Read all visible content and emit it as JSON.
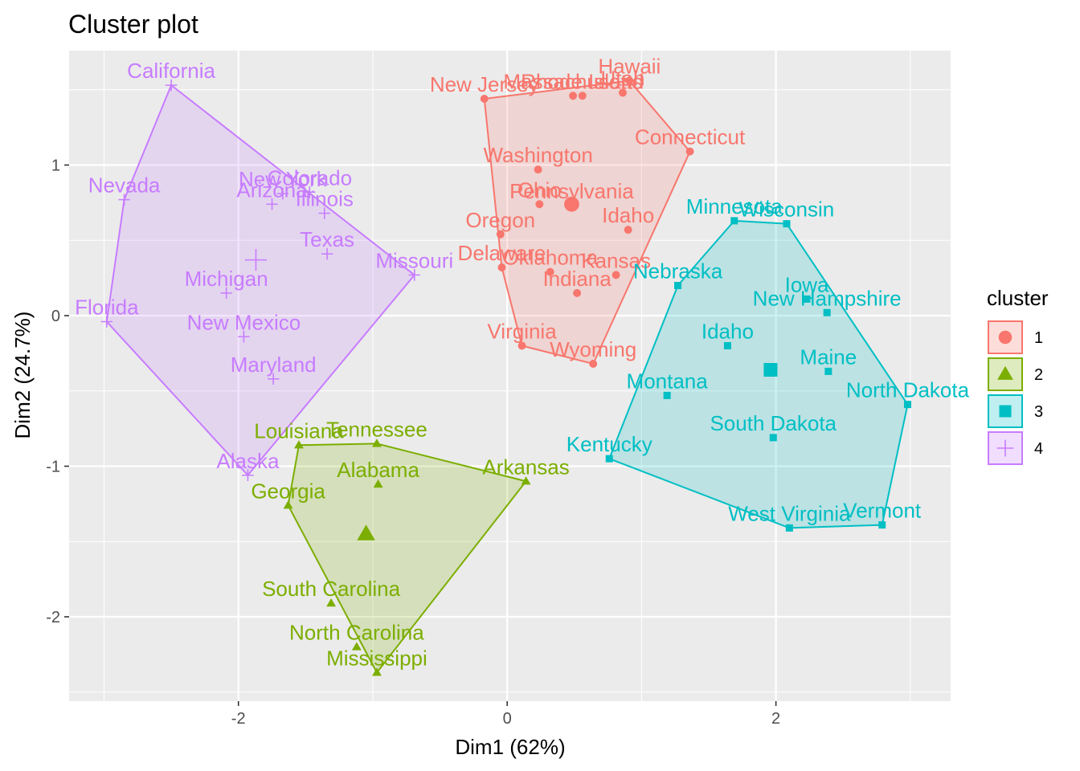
{
  "chart_data": {
    "type": "scatter",
    "title": "Cluster plot",
    "xlabel": "Dim1 (62%)",
    "ylabel": "Dim2 (24.7%)",
    "xlim": [
      -3.26,
      3.3
    ],
    "ylim": [
      -2.56,
      1.76
    ],
    "x_ticks": [
      -2,
      0,
      2
    ],
    "y_ticks": [
      -2,
      -1,
      0,
      1
    ],
    "grid": true,
    "legend": {
      "title": "cluster",
      "position": "right",
      "entries": [
        "1",
        "2",
        "3",
        "4"
      ]
    },
    "colors": {
      "1": "#F8766D",
      "2": "#7CAE00",
      "3": "#00BFC4",
      "4": "#C77CFF"
    },
    "shapes": {
      "1": "circle",
      "2": "triangle",
      "3": "square",
      "4": "plus"
    },
    "series": [
      {
        "name": "1",
        "hull": [
          "New Jersey",
          "Hawaii",
          "Connecticut",
          "Wyoming",
          "Virginia",
          "Delaware"
        ],
        "center": [
          0.48,
          0.74
        ],
        "points": [
          {
            "label": "New Jersey",
            "x": -0.17,
            "y": 1.44
          },
          {
            "label": "Massachusetts",
            "x": 0.49,
            "y": 1.46
          },
          {
            "label": "Rhode Island",
            "x": 0.56,
            "y": 1.46
          },
          {
            "label": "Hawaii",
            "x": 0.91,
            "y": 1.56
          },
          {
            "label": "Utah",
            "x": 0.86,
            "y": 1.48
          },
          {
            "label": "Connecticut",
            "x": 1.36,
            "y": 1.09
          },
          {
            "label": "Washington",
            "x": 0.23,
            "y": 0.97
          },
          {
            "label": "Ohio",
            "x": 0.24,
            "y": 0.74
          },
          {
            "label": "Pennsylvania",
            "x": 0.48,
            "y": 0.73
          },
          {
            "label": "Oregon",
            "x": -0.05,
            "y": 0.54
          },
          {
            "label": "Delaware",
            "x": -0.04,
            "y": 0.32
          },
          {
            "label": "Oklahoma",
            "x": 0.32,
            "y": 0.29
          },
          {
            "label": "Kansas",
            "x": 0.81,
            "y": 0.27
          },
          {
            "label": "Indiana",
            "x": 0.52,
            "y": 0.15
          },
          {
            "label": "Virginia",
            "x": 0.11,
            "y": -0.2
          },
          {
            "label": "Wyoming",
            "x": 0.64,
            "y": -0.32
          },
          {
            "label": "Idaho",
            "x": 0.9,
            "y": 0.57
          }
        ]
      },
      {
        "name": "2",
        "hull": [
          "Louisiana",
          "Tennessee",
          "Arkansas",
          "Mississippi",
          "Georgia"
        ],
        "center": [
          -1.05,
          -1.45
        ],
        "points": [
          {
            "label": "Louisiana",
            "x": -1.55,
            "y": -0.86
          },
          {
            "label": "Tennessee",
            "x": -0.97,
            "y": -0.85
          },
          {
            "label": "Alabama",
            "x": -0.96,
            "y": -1.12
          },
          {
            "label": "Arkansas",
            "x": 0.14,
            "y": -1.1
          },
          {
            "label": "Georgia",
            "x": -1.63,
            "y": -1.26
          },
          {
            "label": "South Carolina",
            "x": -1.31,
            "y": -1.91
          },
          {
            "label": "North Carolina",
            "x": -1.12,
            "y": -2.2
          },
          {
            "label": "Mississippi",
            "x": -0.97,
            "y": -2.37
          }
        ]
      },
      {
        "name": "3",
        "hull": [
          "Minnesota",
          "Wisconsin",
          "North Dakota",
          "Vermont",
          "West Virginia",
          "Kentucky",
          "Nebraska"
        ],
        "center": [
          1.96,
          -0.36
        ],
        "points": [
          {
            "label": "Minnesota",
            "x": 1.69,
            "y": 0.63
          },
          {
            "label": "Wisconsin",
            "x": 2.08,
            "y": 0.61
          },
          {
            "label": "Nebraska",
            "x": 1.27,
            "y": 0.2
          },
          {
            "label": "Iowa",
            "x": 2.23,
            "y": 0.11
          },
          {
            "label": "New Hampshire",
            "x": 2.38,
            "y": 0.02
          },
          {
            "label": "Idaho",
            "x": 1.64,
            "y": -0.2
          },
          {
            "label": "Maine",
            "x": 2.39,
            "y": -0.37
          },
          {
            "label": "Montana",
            "x": 1.19,
            "y": -0.53
          },
          {
            "label": "North Dakota",
            "x": 2.98,
            "y": -0.59
          },
          {
            "label": "South Dakota",
            "x": 1.98,
            "y": -0.81
          },
          {
            "label": "Kentucky",
            "x": 0.76,
            "y": -0.95
          },
          {
            "label": "West Virginia",
            "x": 2.1,
            "y": -1.41
          },
          {
            "label": "Vermont",
            "x": 2.79,
            "y": -1.39
          }
        ]
      },
      {
        "name": "4",
        "hull": [
          "California",
          "Missouri",
          "Alaska",
          "Florida",
          "Nevada"
        ],
        "center": [
          -1.87,
          0.37
        ],
        "points": [
          {
            "label": "California",
            "x": -2.5,
            "y": 1.53
          },
          {
            "label": "Nevada",
            "x": -2.85,
            "y": 0.77
          },
          {
            "label": "Colorado",
            "x": -1.47,
            "y": 0.82
          },
          {
            "label": "New York",
            "x": -1.67,
            "y": 0.81
          },
          {
            "label": "Arizona",
            "x": -1.75,
            "y": 0.74
          },
          {
            "label": "Illinois",
            "x": -1.36,
            "y": 0.68
          },
          {
            "label": "Texas",
            "x": -1.34,
            "y": 0.41
          },
          {
            "label": "Missouri",
            "x": -0.69,
            "y": 0.27
          },
          {
            "label": "Michigan",
            "x": -2.09,
            "y": 0.15
          },
          {
            "label": "New Mexico",
            "x": -1.96,
            "y": -0.14
          },
          {
            "label": "Florida",
            "x": -2.98,
            "y": -0.04
          },
          {
            "label": "Maryland",
            "x": -1.74,
            "y": -0.42
          },
          {
            "label": "Alaska",
            "x": -1.93,
            "y": -1.06
          }
        ]
      }
    ]
  }
}
